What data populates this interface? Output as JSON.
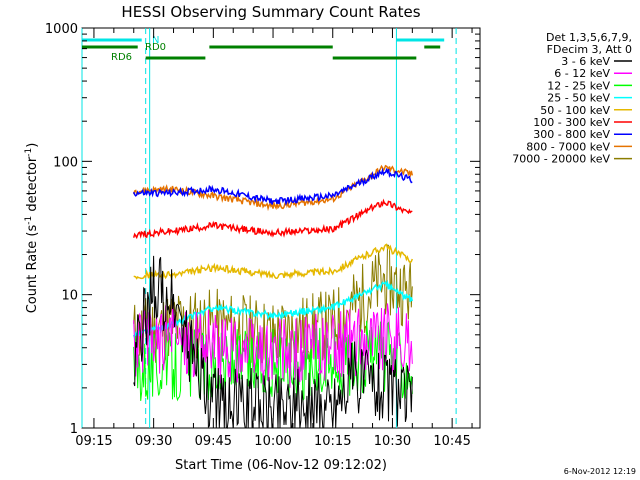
{
  "chart_data": {
    "type": "line",
    "title": "HESSI Observing Summary Count Rates",
    "xlabel": "Start Time (06-Nov-12 09:12:02)",
    "ylabel": "Count Rate (s",
    "ylabel_sup1": "-1",
    "ylabel_mid": " detector",
    "ylabel_sup2": "-1",
    "ylabel_end": ")",
    "y_scale": "log",
    "ylim": [
      1,
      1000
    ],
    "xlim": [
      "09:12",
      "10:52"
    ],
    "x_ticks": [
      "09:15",
      "09:30",
      "09:45",
      "10:00",
      "10:15",
      "10:30",
      "10:45"
    ],
    "y_ticks": [
      "1",
      "10",
      "100",
      "1000"
    ],
    "legend_header": [
      "Det 1,3,5,6,7,9,",
      "FDecim 3, Att 0"
    ],
    "legend_placement": "right",
    "timestamp": "6-Nov-2012 12:19",
    "flags": [
      {
        "label": "N",
        "color": "#00e5e5",
        "segments": [
          [
            "09:12",
            "09:27"
          ],
          [
            "10:31",
            "10:43"
          ]
        ]
      },
      {
        "label": "RD0",
        "color": "#008000",
        "segments": [
          [
            "09:12",
            "09:26"
          ],
          [
            "09:44",
            "10:15"
          ],
          [
            "10:38",
            "10:42"
          ]
        ]
      },
      {
        "label": "RD6",
        "color": "#008000",
        "segments": [
          [
            "09:28",
            "09:43"
          ],
          [
            "10:15",
            "10:36"
          ]
        ]
      }
    ],
    "night_lines": [
      {
        "time": "09:12",
        "style": "solid"
      },
      {
        "time": "09:29",
        "style": "solid"
      },
      {
        "time": "09:28",
        "style": "dashed"
      },
      {
        "time": "10:31",
        "style": "solid"
      },
      {
        "time": "10:46",
        "style": "dashed"
      }
    ],
    "gaps": [
      [
        "09:12",
        "09:24"
      ],
      [
        "10:36",
        "10:52"
      ]
    ],
    "series": [
      {
        "name": "3 - 6 keV",
        "color": "#000000",
        "values": [
          [
            "09:25",
            3
          ],
          [
            "09:30",
            12
          ],
          [
            "09:35",
            8
          ],
          [
            "09:45",
            1.5
          ],
          [
            "10:00",
            1.5
          ],
          [
            "10:15",
            1.5
          ],
          [
            "10:20",
            2.5
          ],
          [
            "10:30",
            2
          ],
          [
            "10:35",
            1.5
          ]
        ]
      },
      {
        "name": "6 - 12 keV",
        "color": "#ff00ff",
        "values": [
          [
            "09:25",
            4
          ],
          [
            "09:35",
            5
          ],
          [
            "09:45",
            4
          ],
          [
            "10:00",
            3.5
          ],
          [
            "10:15",
            4
          ],
          [
            "10:25",
            5
          ],
          [
            "10:35",
            4
          ]
        ]
      },
      {
        "name": "12 - 25 keV",
        "color": "#00ff00",
        "values": [
          [
            "09:25",
            3
          ],
          [
            "09:35",
            3
          ],
          [
            "09:45",
            3
          ],
          [
            "10:00",
            3
          ],
          [
            "10:15",
            3
          ],
          [
            "10:25",
            3.5
          ],
          [
            "10:35",
            3
          ]
        ]
      },
      {
        "name": "25 - 50 keV",
        "color": "#00ffff",
        "values": [
          [
            "09:25",
            5
          ],
          [
            "09:35",
            6
          ],
          [
            "09:45",
            8
          ],
          [
            "10:00",
            7
          ],
          [
            "10:15",
            8
          ],
          [
            "10:28",
            12
          ],
          [
            "10:35",
            9
          ]
        ]
      },
      {
        "name": "50 - 100 keV",
        "color": "#e5b800",
        "values": [
          [
            "09:25",
            14
          ],
          [
            "09:35",
            14
          ],
          [
            "09:45",
            16
          ],
          [
            "10:00",
            14
          ],
          [
            "10:15",
            15
          ],
          [
            "10:28",
            23
          ],
          [
            "10:35",
            18
          ]
        ]
      },
      {
        "name": "100 - 300 keV",
        "color": "#ff0000",
        "values": [
          [
            "09:25",
            28
          ],
          [
            "09:35",
            30
          ],
          [
            "09:45",
            33
          ],
          [
            "10:00",
            29
          ],
          [
            "10:15",
            31
          ],
          [
            "10:28",
            50
          ],
          [
            "10:35",
            40
          ]
        ]
      },
      {
        "name": "300 - 800 keV",
        "color": "#0000ff",
        "values": [
          [
            "09:25",
            58
          ],
          [
            "09:35",
            58
          ],
          [
            "09:45",
            62
          ],
          [
            "10:00",
            50
          ],
          [
            "10:15",
            55
          ],
          [
            "10:28",
            85
          ],
          [
            "10:35",
            72
          ]
        ]
      },
      {
        "name": "800 - 7000 keV",
        "color": "#e57300",
        "values": [
          [
            "09:25",
            60
          ],
          [
            "09:35",
            62
          ],
          [
            "09:45",
            55
          ],
          [
            "10:00",
            46
          ],
          [
            "10:15",
            52
          ],
          [
            "10:28",
            90
          ],
          [
            "10:35",
            80
          ]
        ]
      },
      {
        "name": "7000 - 20000 keV",
        "color": "#8b7d00",
        "values": [
          [
            "09:25",
            5
          ],
          [
            "09:35",
            6
          ],
          [
            "09:45",
            6
          ],
          [
            "10:00",
            5
          ],
          [
            "10:15",
            6
          ],
          [
            "10:28",
            13
          ],
          [
            "10:35",
            10
          ]
        ]
      }
    ]
  }
}
